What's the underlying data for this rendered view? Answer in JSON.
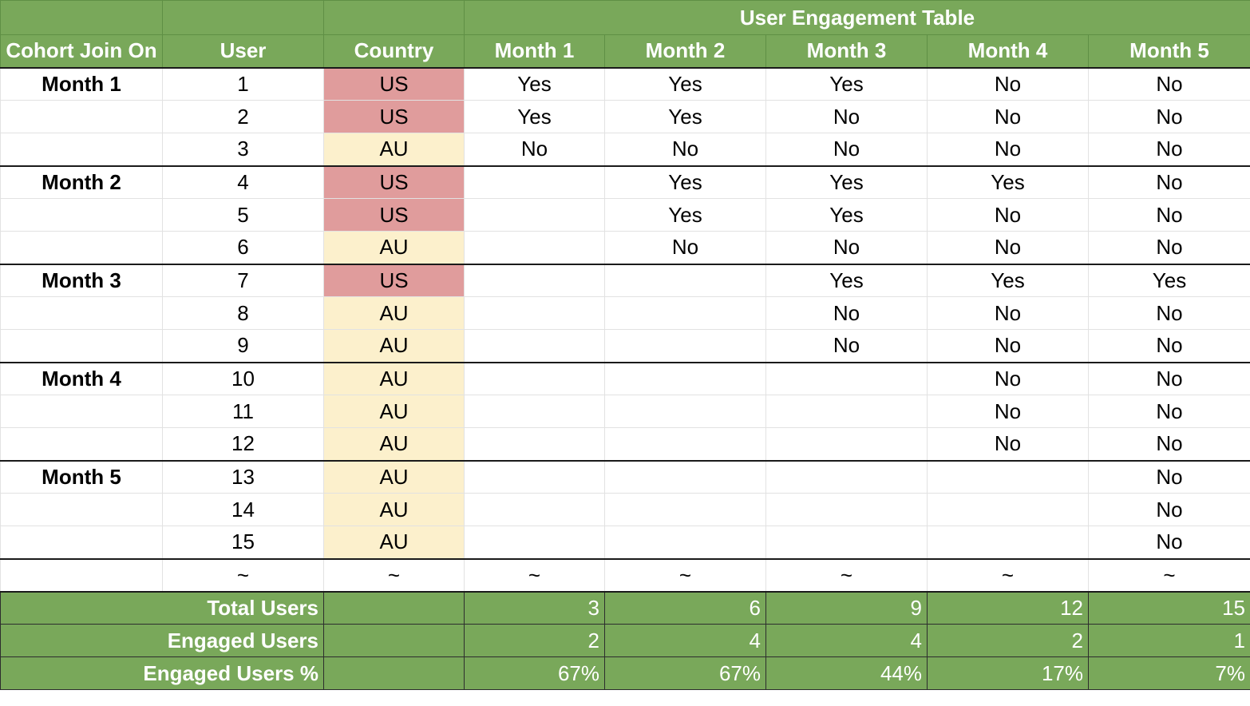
{
  "table_title": "User Engagement Table",
  "headers": [
    "Cohort Join On",
    "User",
    "Country",
    "Month 1",
    "Month 2",
    "Month 3",
    "Month 4",
    "Month 5"
  ],
  "colors": {
    "header_green": "#79a85a",
    "us_red": "#e09c9c",
    "au_yellow": "#fcf0cc"
  },
  "rows": [
    {
      "cohort": "Month 1",
      "user": "1",
      "country": "US",
      "m": [
        "Yes",
        "Yes",
        "Yes",
        "No",
        "No"
      ]
    },
    {
      "cohort": "",
      "user": "2",
      "country": "US",
      "m": [
        "Yes",
        "Yes",
        "No",
        "No",
        "No"
      ]
    },
    {
      "cohort": "",
      "user": "3",
      "country": "AU",
      "m": [
        "No",
        "No",
        "No",
        "No",
        "No"
      ]
    },
    {
      "cohort": "Month 2",
      "user": "4",
      "country": "US",
      "m": [
        "",
        "Yes",
        "Yes",
        "Yes",
        "No"
      ]
    },
    {
      "cohort": "",
      "user": "5",
      "country": "US",
      "m": [
        "",
        "Yes",
        "Yes",
        "No",
        "No"
      ]
    },
    {
      "cohort": "",
      "user": "6",
      "country": "AU",
      "m": [
        "",
        "No",
        "No",
        "No",
        "No"
      ]
    },
    {
      "cohort": "Month 3",
      "user": "7",
      "country": "US",
      "m": [
        "",
        "",
        "Yes",
        "Yes",
        "Yes"
      ]
    },
    {
      "cohort": "",
      "user": "8",
      "country": "AU",
      "m": [
        "",
        "",
        "No",
        "No",
        "No"
      ]
    },
    {
      "cohort": "",
      "user": "9",
      "country": "AU",
      "m": [
        "",
        "",
        "No",
        "No",
        "No"
      ]
    },
    {
      "cohort": "Month 4",
      "user": "10",
      "country": "AU",
      "m": [
        "",
        "",
        "",
        "No",
        "No"
      ]
    },
    {
      "cohort": "",
      "user": "11",
      "country": "AU",
      "m": [
        "",
        "",
        "",
        "No",
        "No"
      ]
    },
    {
      "cohort": "",
      "user": "12",
      "country": "AU",
      "m": [
        "",
        "",
        "",
        "No",
        "No"
      ]
    },
    {
      "cohort": "Month 5",
      "user": "13",
      "country": "AU",
      "m": [
        "",
        "",
        "",
        "",
        "No"
      ]
    },
    {
      "cohort": "",
      "user": "14",
      "country": "AU",
      "m": [
        "",
        "",
        "",
        "",
        "No"
      ]
    },
    {
      "cohort": "",
      "user": "15",
      "country": "AU",
      "m": [
        "",
        "",
        "",
        "",
        "No"
      ]
    }
  ],
  "ellipsis": [
    "",
    "~",
    "~",
    "~",
    "~",
    "~",
    "~",
    "~",
    "~"
  ],
  "summary": {
    "total_label": "Total Users",
    "total": [
      "3",
      "6",
      "9",
      "12",
      "15"
    ],
    "engaged_label": "Engaged Users",
    "engaged": [
      "2",
      "4",
      "4",
      "2",
      "1"
    ],
    "pct_label": "Engaged Users %",
    "pct": [
      "67%",
      "67%",
      "44%",
      "17%",
      "7%"
    ]
  }
}
